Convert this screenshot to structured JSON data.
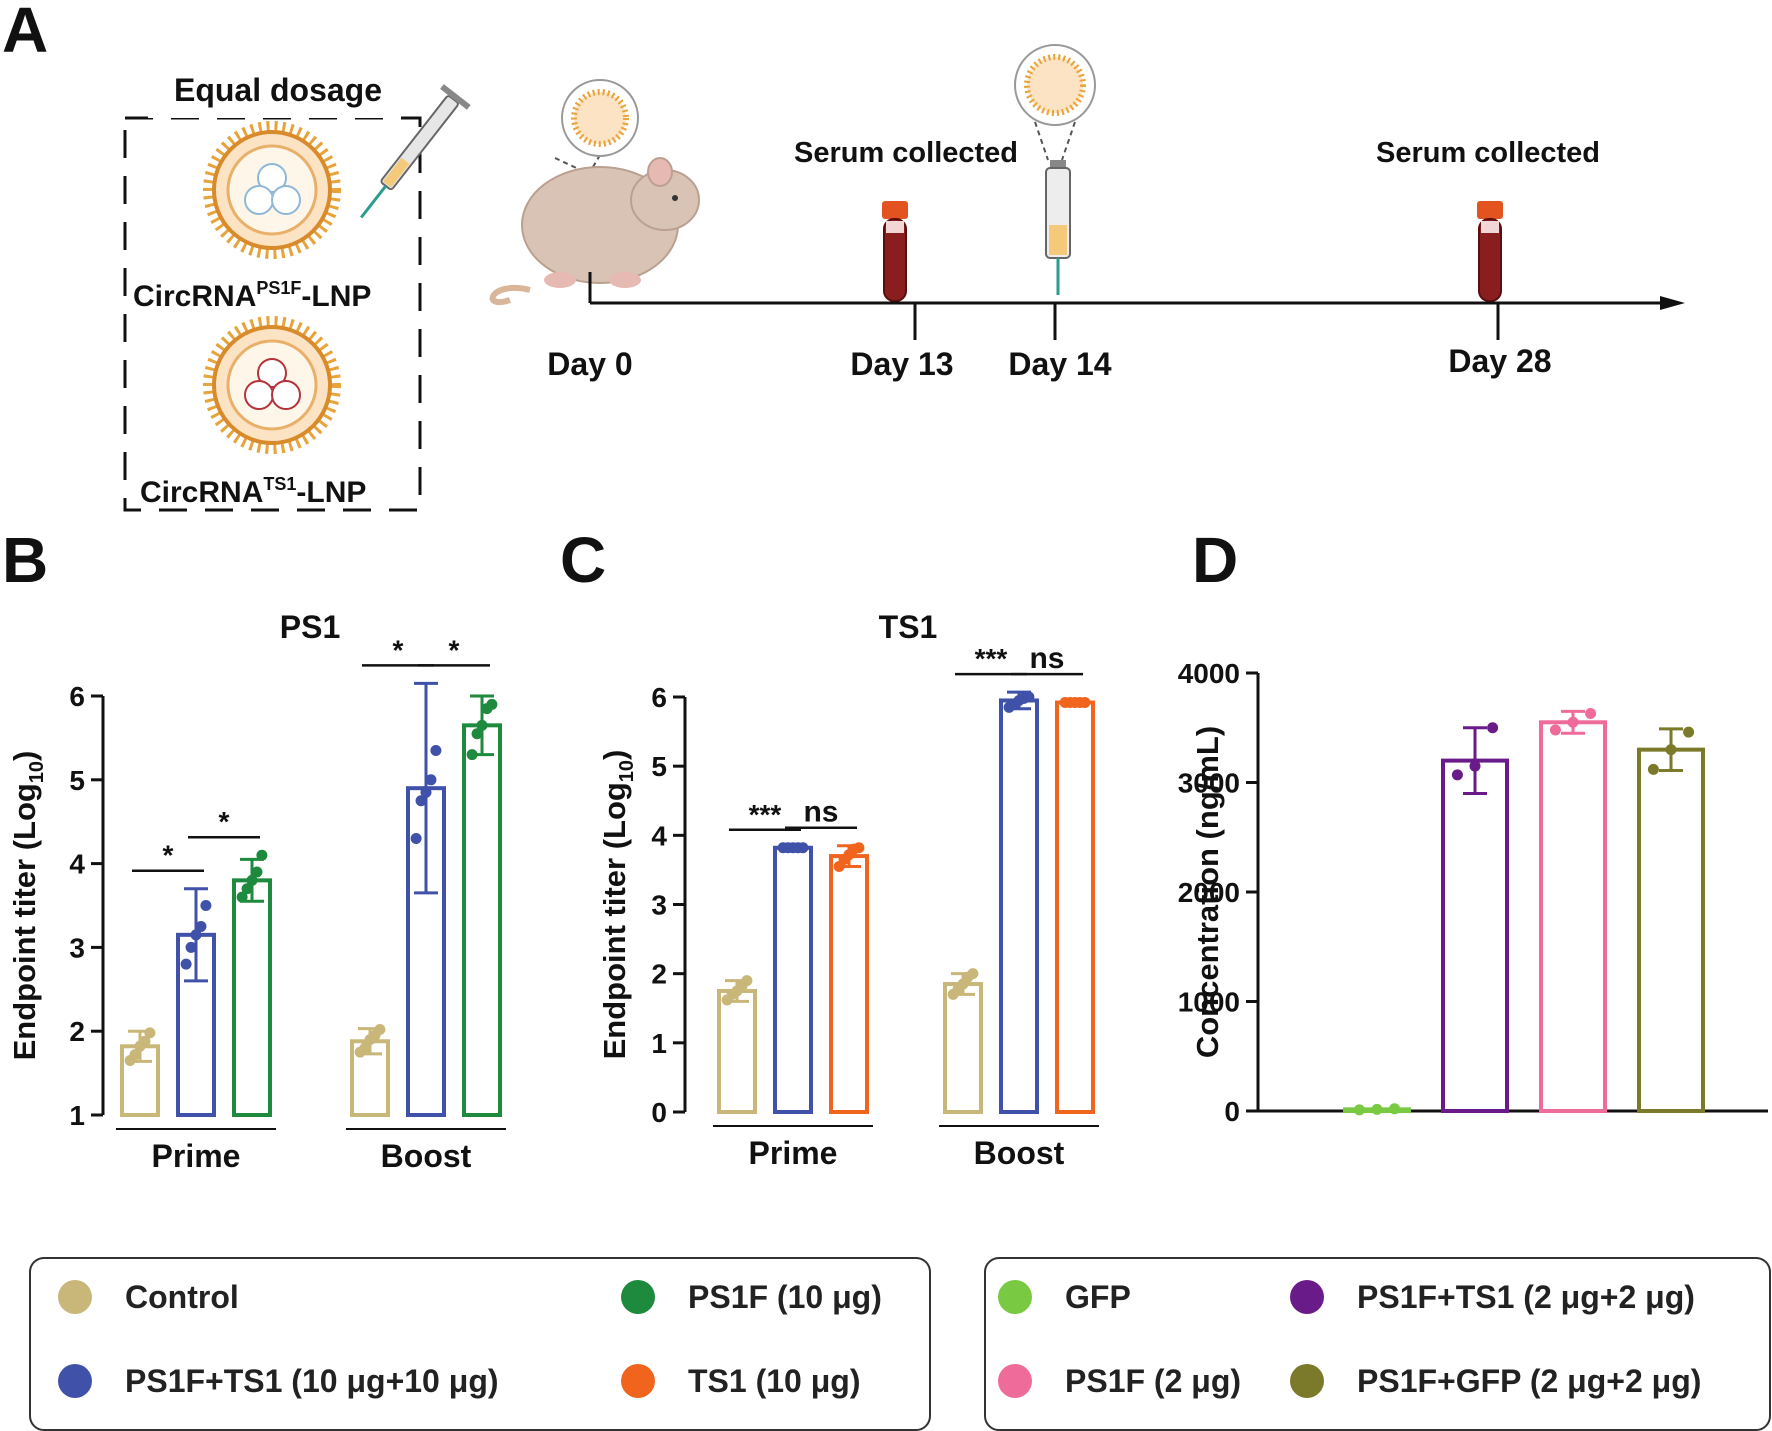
{
  "panels": {
    "a": "A",
    "b": "B",
    "c": "C",
    "d": "D"
  },
  "schematic": {
    "equal_dosage": "Equal dosage",
    "lnp1": {
      "base": "CircRNA",
      "sup": "PS1F",
      "tail": "-LNP"
    },
    "lnp2": {
      "base": "CircRNA",
      "sup": "TS1",
      "tail": "-LNP"
    },
    "serum1": "Serum collected",
    "serum2": "Serum collected",
    "days": [
      "Day 0",
      "Day 13",
      "Day 14",
      "Day 28"
    ]
  },
  "colors": {
    "control": "#c8b779",
    "ps1f_ts1": "#3f51a8",
    "ps1f": "#1e8a3e",
    "ts1": "#f0641e",
    "gfp": "#7ac943",
    "ps1f_2": "#ef6c9a",
    "ps1f_ts1_2": "#6a1b8a",
    "ps1f_gfp": "#7a7a2a"
  },
  "chart_data": [
    {
      "id": "B",
      "type": "bar",
      "title": "PS1",
      "ylabel_main": "Endpoint titer (Log",
      "ylabel_sub": "10",
      "ylabel_close": ")",
      "ylim": [
        1,
        6
      ],
      "yticks": [
        "1",
        "2",
        "3",
        "4",
        "5",
        "6"
      ],
      "groups": [
        {
          "label": "Prime",
          "bars": [
            {
              "series": "Control",
              "color": "#c8b779",
              "value": 1.82,
              "err": 0.18,
              "points": [
                1.65,
                1.72,
                1.82,
                1.88,
                1.98
              ]
            },
            {
              "series": "PS1F+TS1",
              "color": "#3f51a8",
              "value": 3.15,
              "err": 0.55,
              "points": [
                2.8,
                3.0,
                3.15,
                3.25,
                3.5
              ]
            },
            {
              "series": "PS1F",
              "color": "#1e8a3e",
              "value": 3.8,
              "err": 0.25,
              "points": [
                3.6,
                3.7,
                3.8,
                3.9,
                4.1
              ]
            }
          ]
        },
        {
          "label": "Boost",
          "bars": [
            {
              "series": "Control",
              "color": "#c8b779",
              "value": 1.88,
              "err": 0.15,
              "points": [
                1.75,
                1.8,
                1.9,
                1.95,
                2.02
              ]
            },
            {
              "series": "PS1F+TS1",
              "color": "#3f51a8",
              "value": 4.9,
              "err": 1.25,
              "points": [
                4.3,
                4.75,
                4.85,
                5.0,
                5.35
              ]
            },
            {
              "series": "PS1F",
              "color": "#1e8a3e",
              "value": 5.65,
              "err": 0.35,
              "points": [
                5.3,
                5.55,
                5.65,
                5.85,
                5.9
              ]
            }
          ]
        }
      ],
      "significance": [
        {
          "group": 0,
          "from": 0,
          "to": 1,
          "label": "*"
        },
        {
          "group": 0,
          "from": 1,
          "to": 2,
          "label": "*"
        },
        {
          "group": 1,
          "from": 0,
          "to": 1,
          "label": "*"
        },
        {
          "group": 1,
          "from": 1,
          "to": 2,
          "label": "*"
        }
      ]
    },
    {
      "id": "C",
      "type": "bar",
      "title": "TS1",
      "ylabel_main": "Endpoint titer (Log",
      "ylabel_sub": "10",
      "ylabel_close": ")",
      "ylim": [
        0,
        6
      ],
      "yticks": [
        "0",
        "1",
        "2",
        "3",
        "4",
        "5",
        "6"
      ],
      "groups": [
        {
          "label": "Prime",
          "bars": [
            {
              "series": "Control",
              "color": "#c8b779",
              "value": 1.75,
              "err": 0.15,
              "points": [
                1.62,
                1.7,
                1.75,
                1.82,
                1.9
              ]
            },
            {
              "series": "PS1F+TS1",
              "color": "#3f51a8",
              "value": 3.82,
              "err": 0.0,
              "points": [
                3.82,
                3.82,
                3.82,
                3.82,
                3.82
              ]
            },
            {
              "series": "TS1",
              "color": "#f0641e",
              "value": 3.7,
              "err": 0.15,
              "points": [
                3.55,
                3.65,
                3.72,
                3.8,
                3.82
              ]
            }
          ]
        },
        {
          "label": "Boost",
          "bars": [
            {
              "series": "Control",
              "color": "#c8b779",
              "value": 1.85,
              "err": 0.15,
              "points": [
                1.7,
                1.78,
                1.85,
                1.95,
                2.0
              ]
            },
            {
              "series": "PS1F+TS1",
              "color": "#3f51a8",
              "value": 5.95,
              "err": 0.12,
              "points": [
                5.85,
                5.9,
                5.95,
                5.98,
                6.0
              ]
            },
            {
              "series": "TS1",
              "color": "#f0641e",
              "value": 5.92,
              "err": 0.0,
              "points": [
                5.92,
                5.92,
                5.92,
                5.92,
                5.92
              ]
            }
          ]
        }
      ],
      "significance": [
        {
          "group": 0,
          "from": 0,
          "to": 1,
          "label": "***"
        },
        {
          "group": 0,
          "from": 1,
          "to": 2,
          "label": "ns"
        },
        {
          "group": 1,
          "from": 0,
          "to": 1,
          "label": "***"
        },
        {
          "group": 1,
          "from": 1,
          "to": 2,
          "label": "ns"
        }
      ]
    },
    {
      "id": "D",
      "type": "bar",
      "title": "",
      "ylabel_main": "Concentration (ng/mL)",
      "ylim": [
        0,
        4000
      ],
      "yticks": [
        "0",
        "1000",
        "2000",
        "3000",
        "4000"
      ],
      "bars": [
        {
          "series": "GFP",
          "color": "#7ac943",
          "value": 15,
          "err": 0,
          "points": [
            10,
            15,
            20
          ]
        },
        {
          "series": "PS1F+TS1 (2 μg+2 μg)",
          "color": "#6a1b8a",
          "value": 3200,
          "err": 300,
          "points": [
            3070,
            3150,
            3500
          ]
        },
        {
          "series": "PS1F (2 μg)",
          "color": "#ef6c9a",
          "value": 3550,
          "err": 100,
          "points": [
            3480,
            3550,
            3630
          ]
        },
        {
          "series": "PS1F+GFP (2 μg+2 μg)",
          "color": "#7a7a2a",
          "value": 3300,
          "err": 190,
          "points": [
            3120,
            3300,
            3460
          ]
        }
      ]
    }
  ],
  "legend_left": [
    {
      "label": "Control",
      "color": "#c8b779"
    },
    {
      "label": "PS1F (10 μg)",
      "color": "#1e8a3e"
    },
    {
      "label": "PS1F+TS1 (10 μg+10 μg)",
      "color": "#3f51a8"
    },
    {
      "label": "TS1 (10 μg)",
      "color": "#f0641e"
    }
  ],
  "legend_right": [
    {
      "label": "GFP",
      "color": "#7ac943"
    },
    {
      "label": "PS1F+TS1 (2 μg+2 μg)",
      "color": "#6a1b8a"
    },
    {
      "label": "PS1F (2 μg)",
      "color": "#ef6c9a"
    },
    {
      "label": "PS1F+GFP (2 μg+2 μg)",
      "color": "#7a7a2a"
    }
  ]
}
